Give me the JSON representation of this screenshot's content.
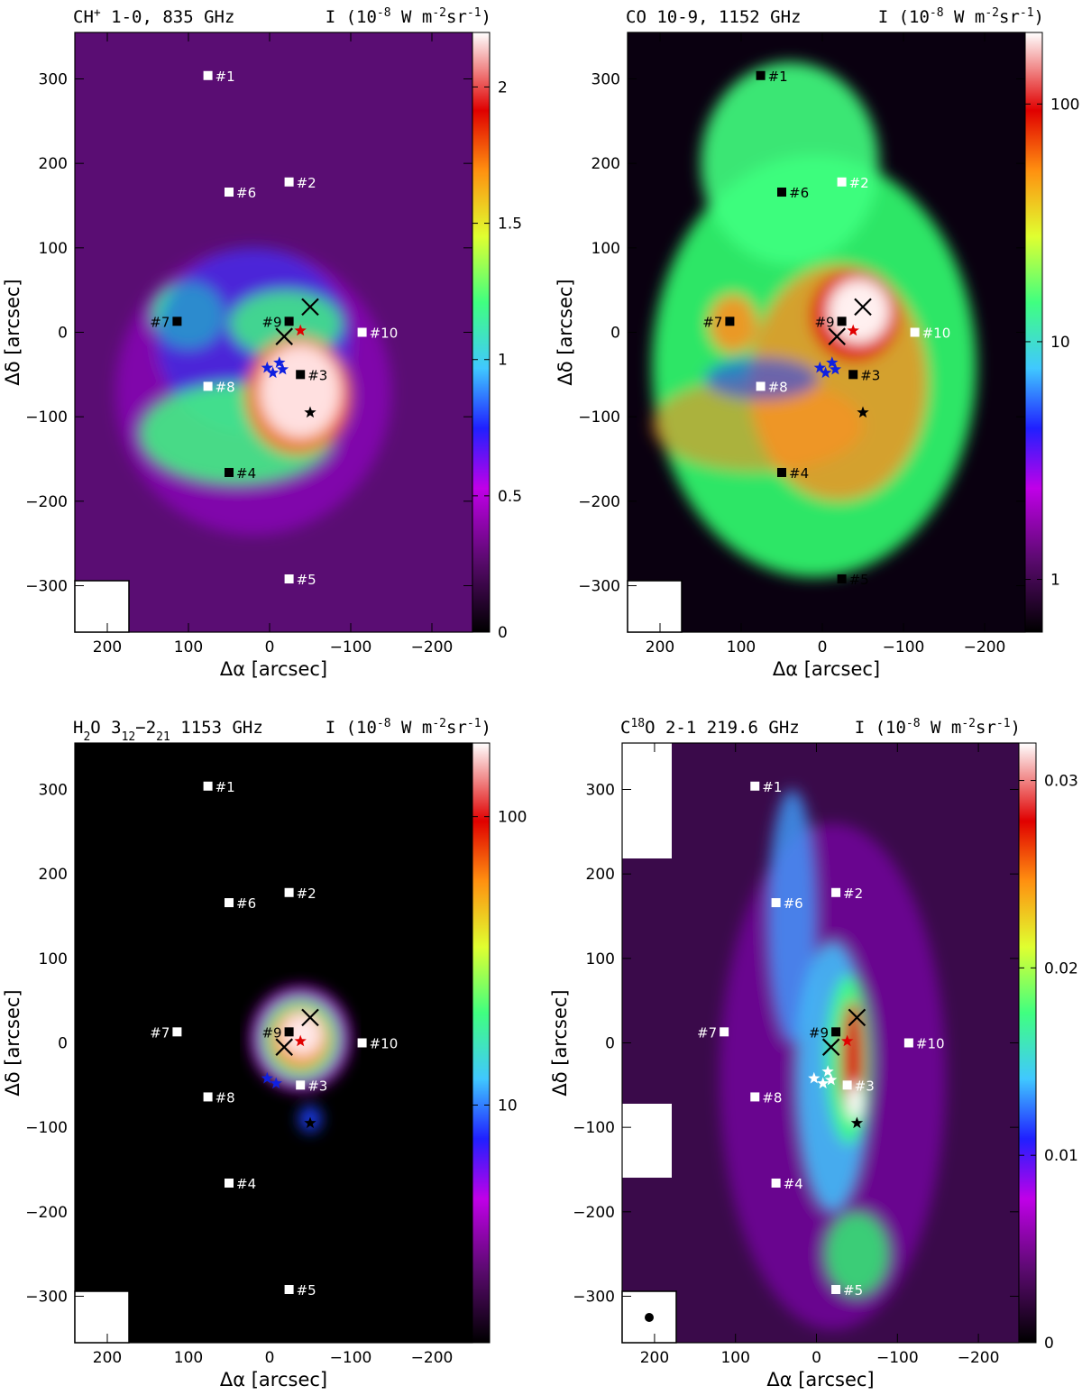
{
  "chart_data": [
    {
      "type": "heatmap",
      "title_line": "CH",
      "title_sup": "+",
      "title_rest": " 1-0, 835 GHz",
      "intensity_unit": "I (10",
      "intensity_unit_exp": "-8",
      "intensity_unit_mid": " W m",
      "intensity_unit_exp2": "-2",
      "intensity_unit_end": "sr",
      "intensity_unit_exp3": "-1",
      "intensity_unit_close": ")",
      "xlabel": "Δα [arcsec]",
      "ylabel": "Δδ [arcsec]",
      "xlim": [
        240,
        -250
      ],
      "ylim": [
        -355,
        355
      ],
      "xticks": [
        200,
        100,
        0,
        -100,
        -200
      ],
      "yticks": [
        300,
        200,
        100,
        0,
        -100,
        -200,
        -300
      ],
      "colorbar": {
        "scale": "linear",
        "range": [
          0,
          2.2
        ],
        "ticks": [
          0,
          0.5,
          1,
          1.5,
          2
        ],
        "tick_labels": [
          "0",
          "0.5",
          "1",
          "1.5",
          "2"
        ]
      },
      "background": "#5a0d73",
      "markers": [
        {
          "label": "#1",
          "x": 76,
          "y": 304,
          "color": "white"
        },
        {
          "label": "#2",
          "x": -24,
          "y": 178,
          "color": "white"
        },
        {
          "label": "#3",
          "x": -38,
          "y": -50,
          "color": "black"
        },
        {
          "label": "#4",
          "x": 50,
          "y": -166,
          "color": "black"
        },
        {
          "label": "#5",
          "x": -24,
          "y": -292,
          "color": "white"
        },
        {
          "label": "#6",
          "x": 50,
          "y": 166,
          "color": "white"
        },
        {
          "label": "#7",
          "x": 114,
          "y": 13,
          "color": "black"
        },
        {
          "label": "#8",
          "x": 76,
          "y": -64,
          "color": "white"
        },
        {
          "label": "#9",
          "x": -24,
          "y": 13,
          "color": "black"
        },
        {
          "label": "#10",
          "x": -114,
          "y": 0,
          "color": "white"
        }
      ],
      "crosses": [
        {
          "x": -50,
          "y": 30
        },
        {
          "x": -18,
          "y": -5
        }
      ],
      "stars": [
        {
          "x": -38,
          "y": 2,
          "color": "#e00000"
        },
        {
          "x": -50,
          "y": -95,
          "color": "#000000"
        },
        {
          "x": 3,
          "y": -42,
          "color": "#1020e0"
        },
        {
          "x": -4,
          "y": -48,
          "color": "#1020e0"
        },
        {
          "x": -12,
          "y": -36,
          "color": "#1020e0"
        },
        {
          "x": -16,
          "y": -44,
          "color": "#1020e0"
        }
      ],
      "beam": true
    },
    {
      "type": "heatmap",
      "title_line": "CO 10-9, 1152 GHz",
      "title_sup": "",
      "title_rest": "",
      "intensity_unit": "I (10",
      "intensity_unit_exp": "-8",
      "intensity_unit_mid": " W m",
      "intensity_unit_exp2": "-2",
      "intensity_unit_end": "sr",
      "intensity_unit_exp3": "-1",
      "intensity_unit_close": ")",
      "xlabel": "Δα [arcsec]",
      "ylabel": "Δδ [arcsec]",
      "xlim": [
        240,
        -250
      ],
      "ylim": [
        -355,
        355
      ],
      "xticks": [
        200,
        100,
        0,
        -100,
        -200
      ],
      "yticks": [
        300,
        200,
        100,
        0,
        -100,
        -200,
        -300
      ],
      "colorbar": {
        "scale": "log",
        "range": [
          0.6,
          200
        ],
        "ticks": [
          1,
          10,
          100
        ],
        "tick_labels": [
          "1",
          "10",
          "100"
        ]
      },
      "background": "#0a0010",
      "markers": [
        {
          "label": "#1",
          "x": 76,
          "y": 304,
          "color": "black"
        },
        {
          "label": "#2",
          "x": -24,
          "y": 178,
          "color": "white"
        },
        {
          "label": "#3",
          "x": -38,
          "y": -50,
          "color": "black"
        },
        {
          "label": "#4",
          "x": 50,
          "y": -166,
          "color": "black"
        },
        {
          "label": "#5",
          "x": -24,
          "y": -292,
          "color": "black"
        },
        {
          "label": "#6",
          "x": 50,
          "y": 166,
          "color": "black"
        },
        {
          "label": "#7",
          "x": 114,
          "y": 13,
          "color": "black"
        },
        {
          "label": "#8",
          "x": 76,
          "y": -64,
          "color": "white"
        },
        {
          "label": "#9",
          "x": -24,
          "y": 13,
          "color": "black"
        },
        {
          "label": "#10",
          "x": -114,
          "y": 0,
          "color": "white"
        }
      ],
      "crosses": [
        {
          "x": -50,
          "y": 30
        },
        {
          "x": -18,
          "y": -5
        }
      ],
      "stars": [
        {
          "x": -38,
          "y": 2,
          "color": "#e00000"
        },
        {
          "x": -50,
          "y": -95,
          "color": "#000000"
        },
        {
          "x": 3,
          "y": -42,
          "color": "#1020e0"
        },
        {
          "x": -4,
          "y": -48,
          "color": "#1020e0"
        },
        {
          "x": -12,
          "y": -36,
          "color": "#1020e0"
        },
        {
          "x": -16,
          "y": -44,
          "color": "#1020e0"
        }
      ],
      "beam": true
    },
    {
      "type": "heatmap",
      "title_line": "H",
      "title_sub": "2",
      "title_mid": "O 3",
      "title_sub2": "12",
      "title_mid2": "−2",
      "title_sub3": "21",
      "title_rest": " 1153 GHz",
      "intensity_unit": "I (10",
      "intensity_unit_exp": "-8",
      "intensity_unit_mid": " W m",
      "intensity_unit_exp2": "-2",
      "intensity_unit_end": "sr",
      "intensity_unit_exp3": "-1",
      "intensity_unit_close": ")",
      "xlabel": "Δα [arcsec]",
      "ylabel": "Δδ [arcsec]",
      "xlim": [
        240,
        -250
      ],
      "ylim": [
        -355,
        355
      ],
      "xticks": [
        200,
        100,
        0,
        -100,
        -200
      ],
      "yticks": [
        300,
        200,
        100,
        0,
        -100,
        -200,
        -300
      ],
      "colorbar": {
        "scale": "log",
        "range": [
          1.5,
          180
        ],
        "ticks": [
          10,
          100
        ],
        "tick_labels": [
          "10",
          "100"
        ]
      },
      "background": "#000000",
      "markers": [
        {
          "label": "#1",
          "x": 76,
          "y": 304,
          "color": "white"
        },
        {
          "label": "#2",
          "x": -24,
          "y": 178,
          "color": "white"
        },
        {
          "label": "#3",
          "x": -38,
          "y": -50,
          "color": "white"
        },
        {
          "label": "#4",
          "x": 50,
          "y": -166,
          "color": "white"
        },
        {
          "label": "#5",
          "x": -24,
          "y": -292,
          "color": "white"
        },
        {
          "label": "#6",
          "x": 50,
          "y": 166,
          "color": "white"
        },
        {
          "label": "#7",
          "x": 114,
          "y": 13,
          "color": "white"
        },
        {
          "label": "#8",
          "x": 76,
          "y": -64,
          "color": "white"
        },
        {
          "label": "#9",
          "x": -24,
          "y": 13,
          "color": "black"
        },
        {
          "label": "#10",
          "x": -114,
          "y": 0,
          "color": "white"
        }
      ],
      "crosses": [
        {
          "x": -50,
          "y": 30
        },
        {
          "x": -18,
          "y": -5
        }
      ],
      "stars": [
        {
          "x": -38,
          "y": 2,
          "color": "#e00000"
        },
        {
          "x": -50,
          "y": -95,
          "color": "#000000"
        },
        {
          "x": 3,
          "y": -42,
          "color": "#1020e0"
        },
        {
          "x": -8,
          "y": -48,
          "color": "#1020e0"
        }
      ],
      "beam": true
    },
    {
      "type": "heatmap",
      "title_line": "C",
      "title_sup": "18",
      "title_rest": "O 2-1  219.6 GHz",
      "intensity_unit": "I (10",
      "intensity_unit_exp": "-8",
      "intensity_unit_mid": " W m",
      "intensity_unit_exp2": "-2",
      "intensity_unit_end": "sr",
      "intensity_unit_exp3": "-1",
      "intensity_unit_close": ")",
      "xlabel": "Δα [arcsec]",
      "ylabel": "Δδ [arcsec]",
      "xlim": [
        240,
        -250
      ],
      "ylim": [
        -355,
        355
      ],
      "xticks": [
        200,
        100,
        0,
        -100,
        -200
      ],
      "yticks": [
        300,
        200,
        100,
        0,
        -100,
        -200,
        -300
      ],
      "colorbar": {
        "scale": "linear",
        "range": [
          0,
          0.032
        ],
        "ticks": [
          0,
          0.01,
          0.02,
          0.03
        ],
        "tick_labels": [
          "0",
          "0.01",
          "0.02",
          "0.03"
        ]
      },
      "background": "#3a0a4a",
      "markers": [
        {
          "label": "#1",
          "x": 76,
          "y": 304,
          "color": "white"
        },
        {
          "label": "#2",
          "x": -24,
          "y": 178,
          "color": "white"
        },
        {
          "label": "#3",
          "x": -38,
          "y": -50,
          "color": "white"
        },
        {
          "label": "#4",
          "x": 50,
          "y": -166,
          "color": "white"
        },
        {
          "label": "#5",
          "x": -24,
          "y": -292,
          "color": "white"
        },
        {
          "label": "#6",
          "x": 50,
          "y": 166,
          "color": "white"
        },
        {
          "label": "#7",
          "x": 114,
          "y": 13,
          "color": "white"
        },
        {
          "label": "#8",
          "x": 76,
          "y": -64,
          "color": "white"
        },
        {
          "label": "#9",
          "x": -24,
          "y": 13,
          "color": "black"
        },
        {
          "label": "#10",
          "x": -114,
          "y": 0,
          "color": "white"
        }
      ],
      "crosses": [
        {
          "x": -50,
          "y": 30
        },
        {
          "x": -18,
          "y": -5
        }
      ],
      "stars": [
        {
          "x": -38,
          "y": 2,
          "color": "#e00000"
        },
        {
          "x": -50,
          "y": -95,
          "color": "#000000"
        },
        {
          "x": 3,
          "y": -42,
          "color": "#ffffff"
        },
        {
          "x": -8,
          "y": -48,
          "color": "#ffffff"
        },
        {
          "x": -14,
          "y": -34,
          "color": "#ffffff"
        },
        {
          "x": -18,
          "y": -44,
          "color": "#ffffff"
        }
      ],
      "beam": true
    }
  ]
}
